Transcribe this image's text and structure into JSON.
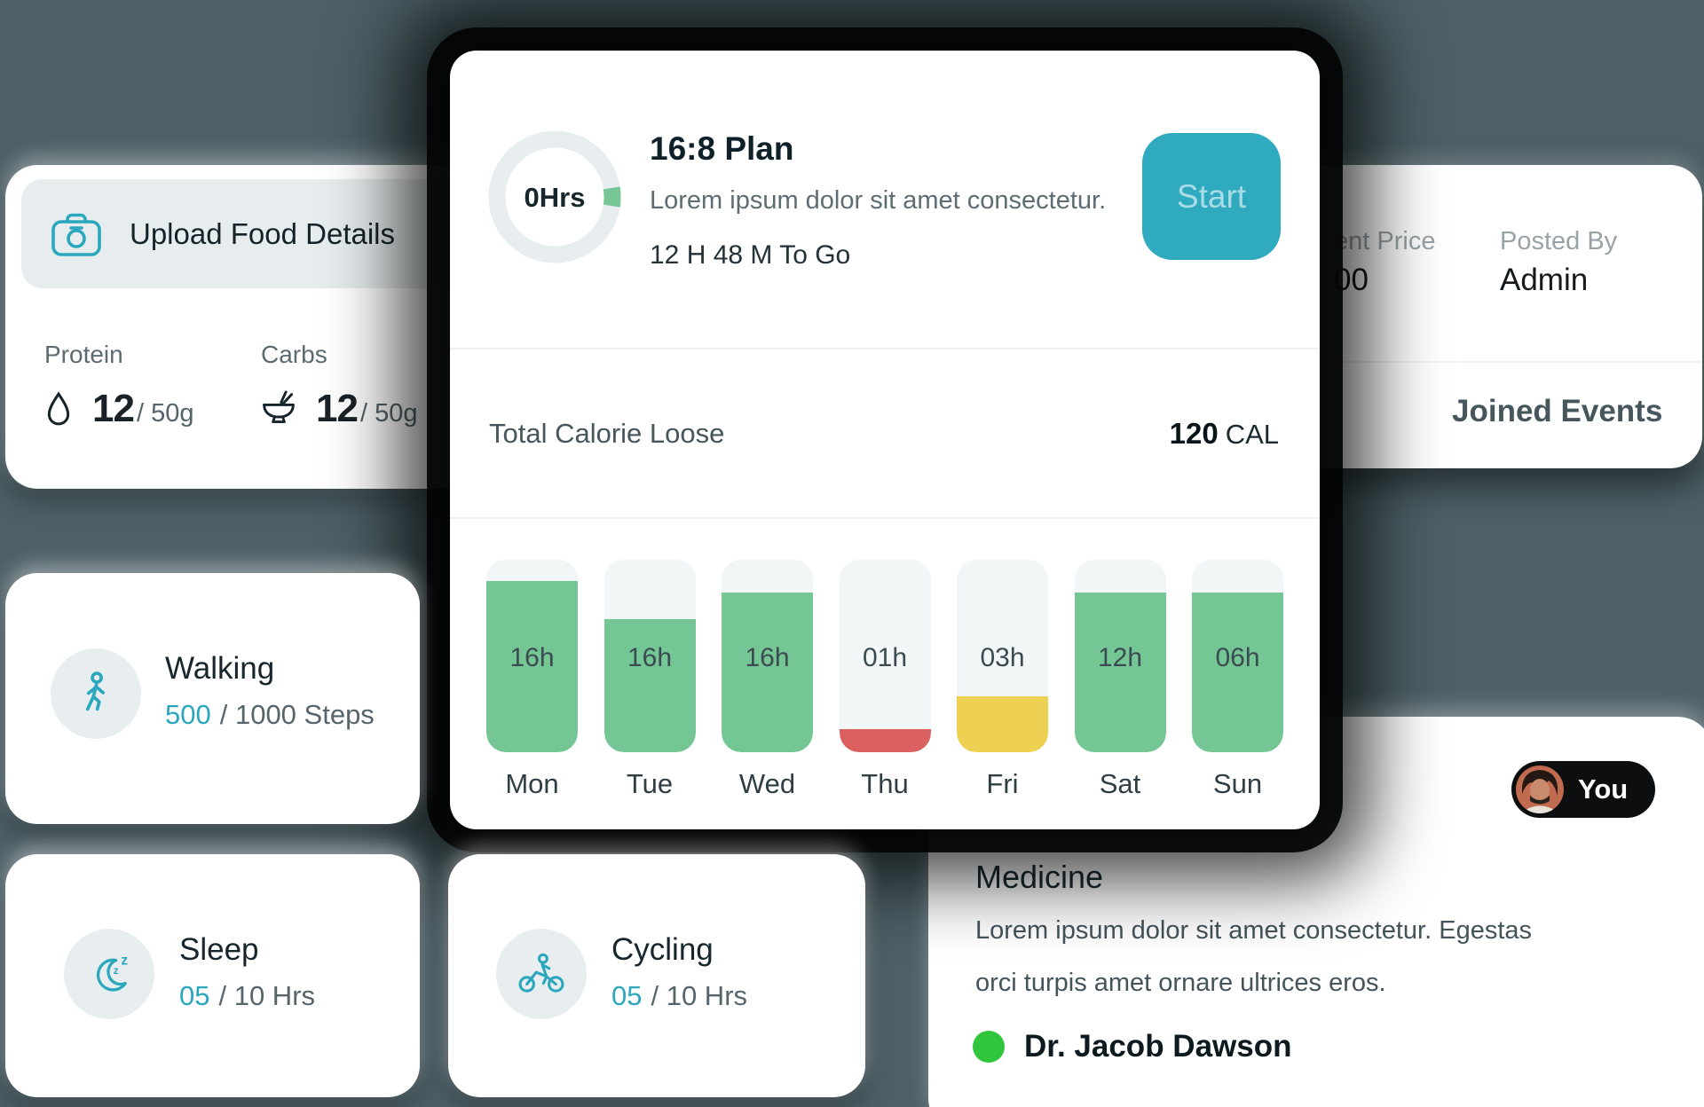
{
  "theme": {
    "background": "#4c6066",
    "accent": "#2ba7bd",
    "card_bg": "#ffffff",
    "start_button_bg": "#2faabf",
    "pill_bg": "#0c0e0f",
    "doctor_status_color": "#2fc53c"
  },
  "food_card": {
    "title": "Upload Food Details",
    "macros": [
      {
        "label": "Protein",
        "icon": "egg-icon",
        "value": "12",
        "target": "/ 50g"
      },
      {
        "label": "Carbs",
        "icon": "bowl-icon",
        "value": "12",
        "target": "/ 50g"
      }
    ]
  },
  "plan_card": {
    "title": "16:8 Plan",
    "subtitle": "Lorem ipsum dolor sit amet consectetur.",
    "countdown": "12 H 48 M To Go",
    "donut_label": "0Hrs",
    "start_label": "Start",
    "calories": {
      "label": "Total Calorie Loose",
      "value": "120",
      "unit": "CAL"
    }
  },
  "chart_data": {
    "type": "bar",
    "categories": [
      "Mon",
      "Tue",
      "Wed",
      "Thu",
      "Fri",
      "Sat",
      "Sun"
    ],
    "values": [
      "16h",
      "16h",
      "16h",
      "01h",
      "03h",
      "12h",
      "06h"
    ],
    "values_numeric_hours": [
      16,
      16,
      16,
      1,
      3,
      12,
      6
    ],
    "fill_percent": [
      89,
      69,
      83,
      12,
      29,
      83,
      83
    ],
    "colors": [
      "#74c795",
      "#74c795",
      "#74c795",
      "#db6161",
      "#eed052",
      "#74c795",
      "#74c795"
    ],
    "track_color": "#f3f6f7",
    "grid": false,
    "legend": false
  },
  "event_card": {
    "price_label_visible": "ent Price",
    "price_value_visible": "00",
    "posted_by_label": "Posted By",
    "posted_by_value": "Admin",
    "joined_label": "Joined Events"
  },
  "activity_cards": {
    "walking": {
      "title": "Walking",
      "value": "500",
      "target": "/ 1000 Steps"
    },
    "sleep": {
      "title": "Sleep",
      "value": "05",
      "target": "/ 10 Hrs"
    },
    "cycling": {
      "title": "Cycling",
      "value": "05",
      "target": "/ 10 Hrs"
    }
  },
  "medicine_card": {
    "badge": "You",
    "title": "Medicine",
    "body": "Lorem ipsum dolor sit amet consectetur. Egestas orci turpis amet ornare ultrices eros.",
    "doctor": "Dr. Jacob Dawson"
  }
}
